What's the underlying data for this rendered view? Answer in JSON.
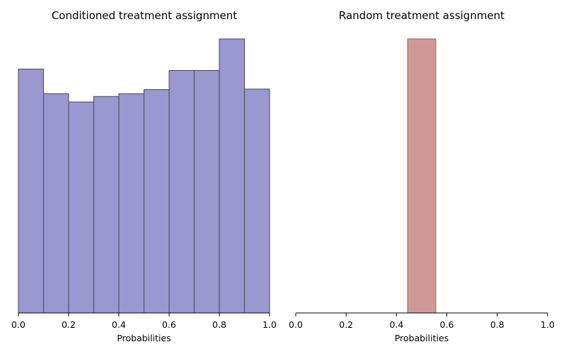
{
  "chart_data": [
    {
      "type": "bar",
      "title": "Conditioned treatment assignment",
      "xlabel": "Probabilities",
      "ylabel": "",
      "xlim": [
        0.0,
        1.0
      ],
      "ylim": [
        0,
        1.0
      ],
      "x_ticks": [
        "0.0",
        "0.2",
        "0.4",
        "0.6",
        "0.8",
        "1.0"
      ],
      "bins": [
        {
          "start": 0.0,
          "end": 0.1,
          "value": 0.89
        },
        {
          "start": 0.1,
          "end": 0.2,
          "value": 0.8
        },
        {
          "start": 0.2,
          "end": 0.3,
          "value": 0.77
        },
        {
          "start": 0.3,
          "end": 0.4,
          "value": 0.79
        },
        {
          "start": 0.4,
          "end": 0.5,
          "value": 0.8
        },
        {
          "start": 0.5,
          "end": 0.6,
          "value": 0.815
        },
        {
          "start": 0.6,
          "end": 0.7,
          "value": 0.885
        },
        {
          "start": 0.7,
          "end": 0.8,
          "value": 0.885
        },
        {
          "start": 0.8,
          "end": 0.9,
          "value": 1.0
        },
        {
          "start": 0.9,
          "end": 1.0,
          "value": 0.817
        }
      ],
      "bar_color": "#9999cf",
      "edge_color": "#44445a",
      "grid": false
    },
    {
      "type": "bar",
      "title": "Random treatment assignment",
      "xlabel": "Probabilities",
      "ylabel": "",
      "xlim": [
        0.0,
        1.0
      ],
      "ylim": [
        0,
        1.0
      ],
      "x_ticks": [
        "0.0",
        "0.2",
        "0.4",
        "0.6",
        "0.8",
        "1.0"
      ],
      "bins": [
        {
          "start": 0.444,
          "end": 0.556,
          "value": 1.0
        }
      ],
      "bar_color": "#d09999",
      "edge_color": "#7a6f6f",
      "grid": false
    }
  ]
}
